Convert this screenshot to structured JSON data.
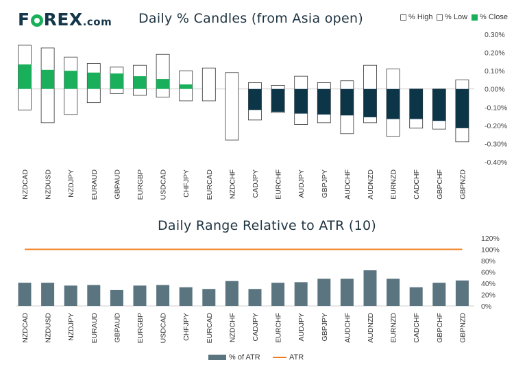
{
  "brand": {
    "logo_left": "F",
    "logo_mid": "REX",
    "logo_suffix": ".com"
  },
  "colors": {
    "brand_navy": "#14364a",
    "close_positive": "#1ab05b",
    "close_negative": "#0c3548",
    "atr_bar": "#5a7580",
    "atr_line": "#f07e1e"
  },
  "chart_data": [
    {
      "type": "bar",
      "title": "Daily % Candles (from Asia open)",
      "legend": [
        "% High",
        "% Low",
        "% Close"
      ],
      "categories": [
        "NZDCAD",
        "NZDUSD",
        "NZDJPY",
        "EURAUD",
        "GBPAUD",
        "EURGBP",
        "USDCAD",
        "CHFJPY",
        "EURCAD",
        "NZDCHF",
        "CADJPY",
        "EURCHF",
        "AUDJPY",
        "GBPJPY",
        "AUDCHF",
        "AUDNZD",
        "EURNZD",
        "CADCHF",
        "GBPCHF",
        "GBPNZD"
      ],
      "series": [
        {
          "name": "% High",
          "values": [
            0.24,
            0.225,
            0.175,
            0.14,
            0.12,
            0.13,
            0.19,
            0.1,
            0.115,
            0.09,
            0.035,
            0.02,
            0.07,
            0.035,
            0.045,
            0.13,
            0.11,
            0.0,
            0.0,
            0.05
          ]
        },
        {
          "name": "% Low",
          "values": [
            -0.115,
            -0.185,
            -0.14,
            -0.075,
            -0.025,
            -0.035,
            -0.045,
            -0.065,
            -0.065,
            -0.28,
            -0.17,
            -0.13,
            -0.195,
            -0.185,
            -0.245,
            -0.185,
            -0.26,
            -0.215,
            -0.22,
            -0.29
          ]
        },
        {
          "name": "% Close",
          "values": [
            0.135,
            0.105,
            0.1,
            0.09,
            0.085,
            0.07,
            0.055,
            0.025,
            0.0,
            0.0,
            -0.115,
            -0.125,
            -0.135,
            -0.14,
            -0.145,
            -0.155,
            -0.165,
            -0.165,
            -0.175,
            -0.215
          ]
        }
      ],
      "ylim": [
        -0.4,
        0.3
      ],
      "yticks": [
        "0.30%",
        "0.20%",
        "0.10%",
        "0.00%",
        "-0.10%",
        "-0.20%",
        "-0.30%",
        "-0.40%"
      ],
      "ytick_values": [
        0.3,
        0.2,
        0.1,
        0.0,
        -0.1,
        -0.2,
        -0.3,
        -0.4
      ]
    },
    {
      "type": "bar",
      "title": "Daily Range Relative to ATR (10)",
      "legend": [
        "% of ATR",
        "ATR"
      ],
      "categories": [
        "NZDCAD",
        "NZDUSD",
        "NZDJPY",
        "EURAUD",
        "GBPAUD",
        "EURGBP",
        "USDCAD",
        "CHFJPY",
        "EURCAD",
        "NZDCHF",
        "CADJPY",
        "EURCHF",
        "AUDJPY",
        "GBPJPY",
        "AUDCHF",
        "AUDNZD",
        "EURNZD",
        "CADCHF",
        "GBPCHF",
        "GBPNZD"
      ],
      "series": [
        {
          "name": "% of ATR",
          "values": [
            41,
            41,
            36,
            37,
            28,
            36,
            37,
            33,
            30,
            44,
            30,
            41,
            42,
            48,
            48,
            63,
            48,
            33,
            41,
            45
          ]
        },
        {
          "name": "ATR",
          "values": [
            100,
            100,
            100,
            100,
            100,
            100,
            100,
            100,
            100,
            100,
            100,
            100,
            100,
            100,
            100,
            100,
            100,
            100,
            100,
            100
          ]
        }
      ],
      "ylim": [
        0,
        120
      ],
      "yticks": [
        "120%",
        "100%",
        "80%",
        "60%",
        "40%",
        "20%",
        "0%"
      ],
      "ytick_values": [
        120,
        100,
        80,
        60,
        40,
        20,
        0
      ]
    }
  ]
}
